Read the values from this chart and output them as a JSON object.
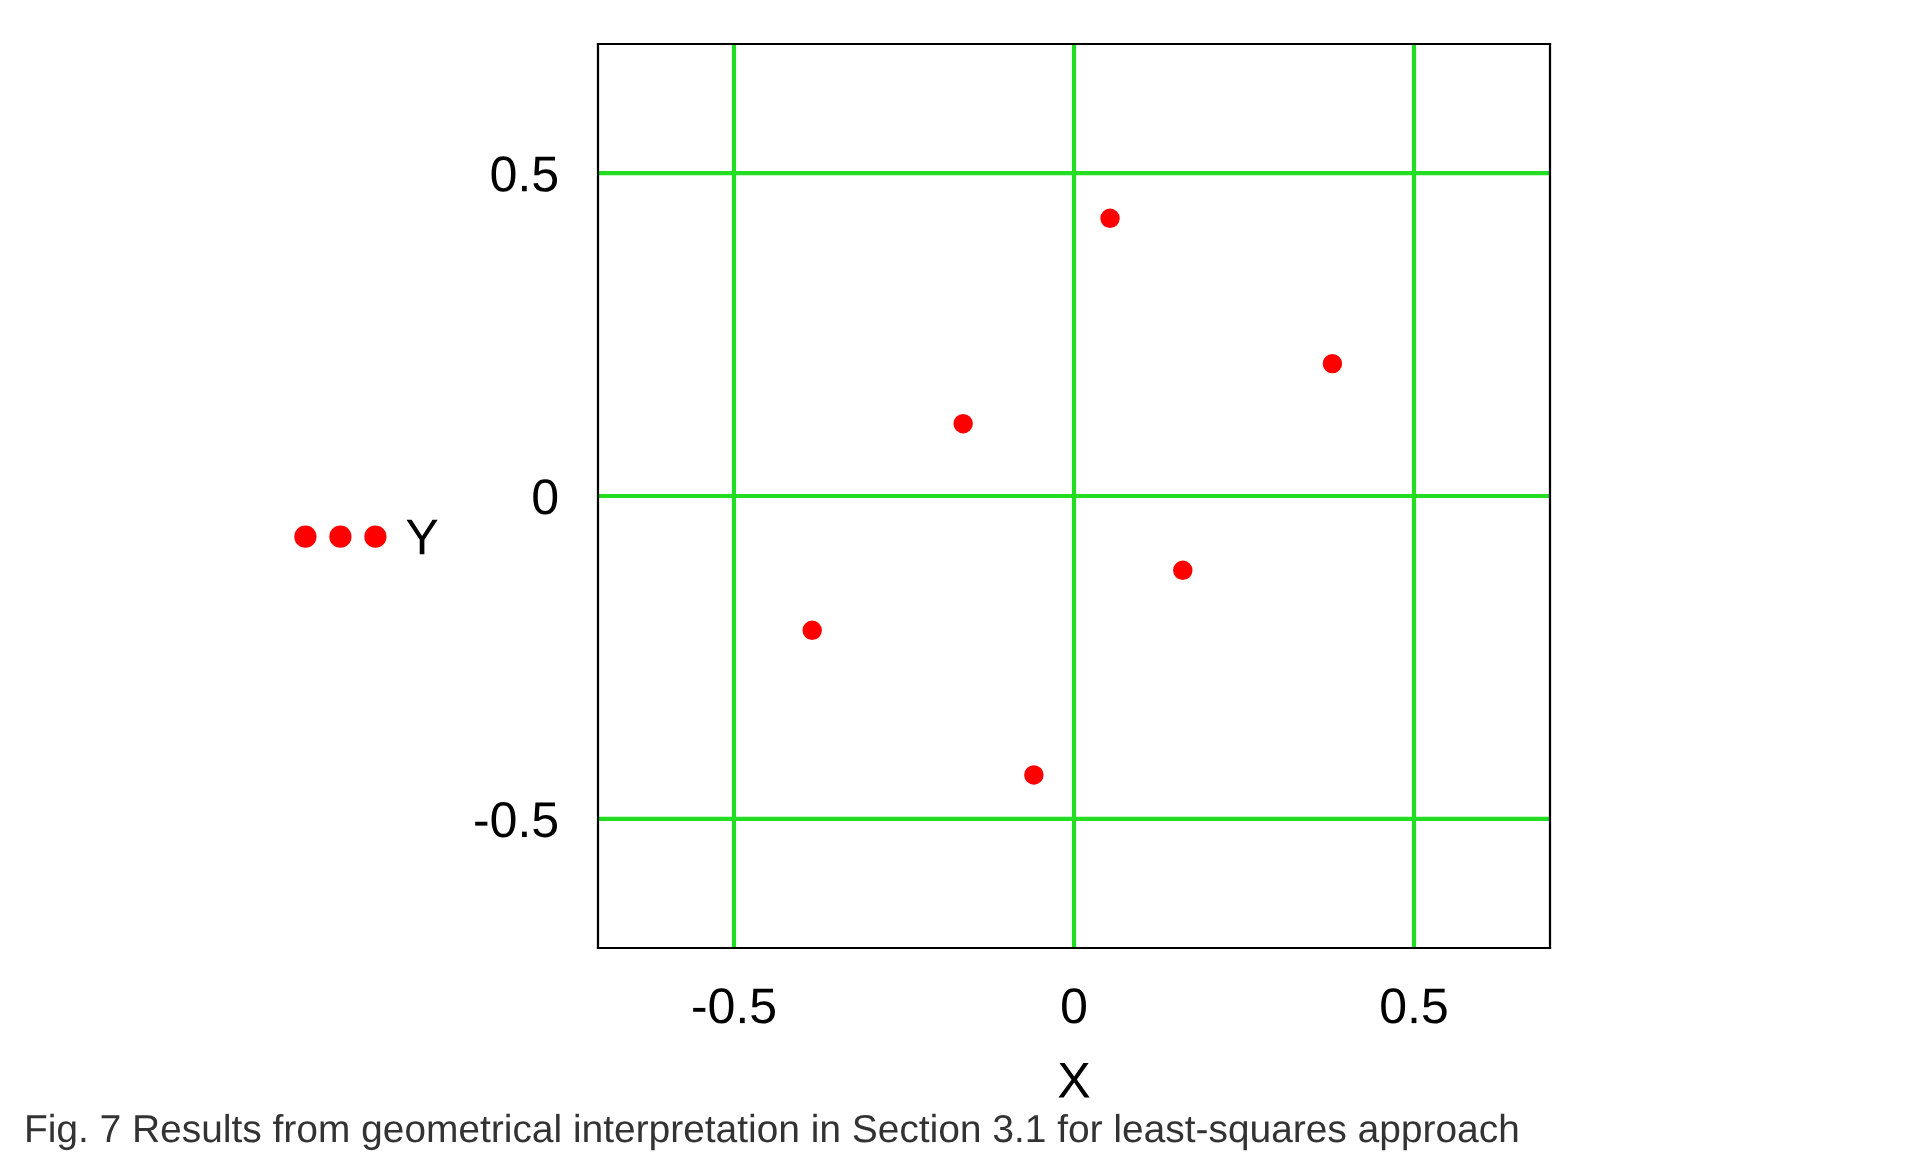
{
  "chart_data": {
    "type": "scatter",
    "xlabel": "X",
    "legend": "left",
    "marker": "circle",
    "grid": true,
    "xlim": [
      -0.7,
      0.7
    ],
    "ylim": [
      -0.7,
      0.7
    ],
    "xticks": [
      -0.5,
      0,
      0.5
    ],
    "yticks": [
      -0.5,
      0,
      0.5
    ],
    "series": [
      {
        "name": "Y",
        "color": "#ff0000",
        "x": [
          0.053,
          0.38,
          -0.163,
          0.16,
          -0.385,
          -0.059
        ],
        "values": [
          0.43,
          0.205,
          0.112,
          -0.115,
          -0.208,
          -0.432
        ]
      }
    ],
    "annotations": [
      "Fig. 7 Results from geometrical interpretation in Section 3.1 for least-squares approach"
    ]
  }
}
